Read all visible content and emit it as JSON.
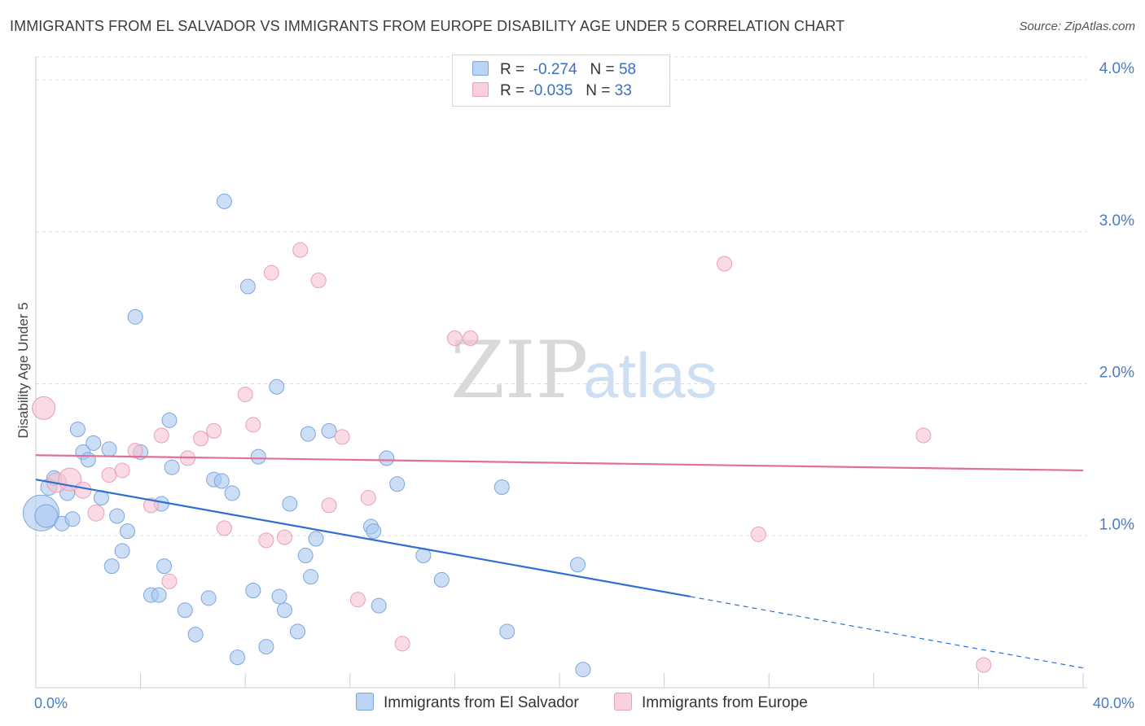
{
  "title": "IMMIGRANTS FROM EL SALVADOR VS IMMIGRANTS FROM EUROPE DISABILITY AGE UNDER 5 CORRELATION CHART",
  "source": "Source: ZipAtlas.com",
  "watermark": {
    "zip": "ZIP",
    "atlas": "atlas"
  },
  "legend": {
    "r_label": "R =",
    "n_label": "N =",
    "rows": [
      {
        "r": "-0.274",
        "n": "58"
      },
      {
        "r": "-0.035",
        "n": "33"
      }
    ]
  },
  "chart_data": {
    "type": "scatter",
    "title": "IMMIGRANTS FROM EL SALVADOR VS IMMIGRANTS FROM EUROPE DISABILITY AGE UNDER 5 CORRELATION CHART",
    "xlabel": "",
    "ylabel": "Disability Age Under 5",
    "xlim": [
      0,
      40
    ],
    "ylim": [
      0,
      4.15
    ],
    "x_tick_labels": [
      "0.0%",
      "40.0%"
    ],
    "y_ticks": [
      1,
      2,
      3,
      4
    ],
    "y_tick_labels": [
      "1.0%",
      "2.0%",
      "3.0%",
      "4.0%"
    ],
    "grid": true,
    "legend_position": "top-center",
    "series": [
      {
        "name": "Immigrants from El Salvador",
        "color": "#a9c8f0",
        "stroke": "#7ea6dc",
        "line_color": "#2f6fcf",
        "trend": {
          "x0": 0,
          "y0": 1.37,
          "x1": 25.0,
          "y1": 0.6,
          "dash_to_x": 40.0,
          "dash_to_y": 0.13
        },
        "points": [
          [
            0.2,
            1.15,
            22
          ],
          [
            0.4,
            1.13,
            14
          ],
          [
            0.5,
            1.32,
            10
          ],
          [
            0.7,
            1.38,
            9
          ],
          [
            1.0,
            1.08,
            9
          ],
          [
            1.2,
            1.28,
            9
          ],
          [
            1.4,
            1.11,
            9
          ],
          [
            1.6,
            1.7,
            9
          ],
          [
            1.8,
            1.55,
            9
          ],
          [
            2.0,
            1.5,
            9
          ],
          [
            2.2,
            1.61,
            9
          ],
          [
            2.5,
            1.25,
            9
          ],
          [
            2.8,
            1.57,
            9
          ],
          [
            2.9,
            0.8,
            9
          ],
          [
            3.1,
            1.13,
            9
          ],
          [
            3.3,
            0.9,
            9
          ],
          [
            3.5,
            1.03,
            9
          ],
          [
            3.8,
            2.44,
            9
          ],
          [
            4.0,
            1.55,
            9
          ],
          [
            4.4,
            0.61,
            9
          ],
          [
            4.7,
            0.61,
            9
          ],
          [
            4.8,
            1.21,
            9
          ],
          [
            4.9,
            0.8,
            9
          ],
          [
            5.1,
            1.76,
            9
          ],
          [
            5.2,
            1.45,
            9
          ],
          [
            5.7,
            0.51,
            9
          ],
          [
            6.1,
            0.35,
            9
          ],
          [
            6.6,
            0.59,
            9
          ],
          [
            6.8,
            1.37,
            9
          ],
          [
            7.1,
            1.36,
            9
          ],
          [
            7.2,
            3.2,
            9
          ],
          [
            7.5,
            1.28,
            9
          ],
          [
            7.7,
            0.2,
            9
          ],
          [
            8.1,
            2.64,
            9
          ],
          [
            8.3,
            0.64,
            9
          ],
          [
            8.5,
            1.52,
            9
          ],
          [
            8.8,
            0.27,
            9
          ],
          [
            9.2,
            1.98,
            9
          ],
          [
            9.3,
            0.6,
            9
          ],
          [
            9.5,
            0.51,
            9
          ],
          [
            9.7,
            1.21,
            9
          ],
          [
            10.0,
            0.37,
            9
          ],
          [
            10.3,
            0.87,
            9
          ],
          [
            10.4,
            1.67,
            9
          ],
          [
            10.5,
            0.73,
            9
          ],
          [
            10.7,
            0.98,
            9
          ],
          [
            11.2,
            1.69,
            9
          ],
          [
            12.8,
            1.06,
            9
          ],
          [
            12.9,
            1.03,
            9
          ],
          [
            13.1,
            0.54,
            9
          ],
          [
            13.4,
            1.51,
            9
          ],
          [
            13.8,
            1.34,
            9
          ],
          [
            14.8,
            0.87,
            9
          ],
          [
            15.5,
            0.71,
            9
          ],
          [
            17.8,
            1.32,
            9
          ],
          [
            18.0,
            0.37,
            9
          ],
          [
            20.7,
            0.81,
            9
          ],
          [
            20.9,
            0.12,
            9
          ]
        ]
      },
      {
        "name": "Immigrants from Europe",
        "color": "#f7c2d2",
        "stroke": "#eaa0b8",
        "line_color": "#e07098",
        "trend": {
          "x0": 0,
          "y0": 1.53,
          "x1": 40.0,
          "y1": 1.43
        },
        "points": [
          [
            0.3,
            1.84,
            14
          ],
          [
            0.8,
            1.35,
            12
          ],
          [
            1.3,
            1.37,
            14
          ],
          [
            1.8,
            1.3,
            10
          ],
          [
            2.3,
            1.15,
            10
          ],
          [
            2.8,
            1.4,
            9
          ],
          [
            3.8,
            1.56,
            9
          ],
          [
            3.3,
            1.43,
            9
          ],
          [
            4.4,
            1.2,
            9
          ],
          [
            4.8,
            1.66,
            9
          ],
          [
            5.1,
            0.7,
            9
          ],
          [
            5.8,
            1.51,
            9
          ],
          [
            6.3,
            1.64,
            9
          ],
          [
            6.8,
            1.69,
            9
          ],
          [
            7.2,
            1.05,
            9
          ],
          [
            8.0,
            1.93,
            9
          ],
          [
            8.3,
            1.73,
            9
          ],
          [
            8.8,
            0.97,
            9
          ],
          [
            9.0,
            2.73,
            9
          ],
          [
            9.5,
            0.99,
            9
          ],
          [
            10.1,
            2.88,
            9
          ],
          [
            10.8,
            2.68,
            9
          ],
          [
            11.2,
            1.2,
            9
          ],
          [
            11.7,
            1.65,
            9
          ],
          [
            12.3,
            0.58,
            9
          ],
          [
            12.7,
            1.25,
            9
          ],
          [
            14.0,
            0.29,
            9
          ],
          [
            16.0,
            2.3,
            9
          ],
          [
            16.6,
            2.3,
            9
          ],
          [
            26.3,
            2.79,
            9
          ],
          [
            27.6,
            1.01,
            9
          ],
          [
            33.9,
            1.66,
            9
          ],
          [
            36.2,
            0.15,
            9
          ]
        ]
      }
    ]
  }
}
